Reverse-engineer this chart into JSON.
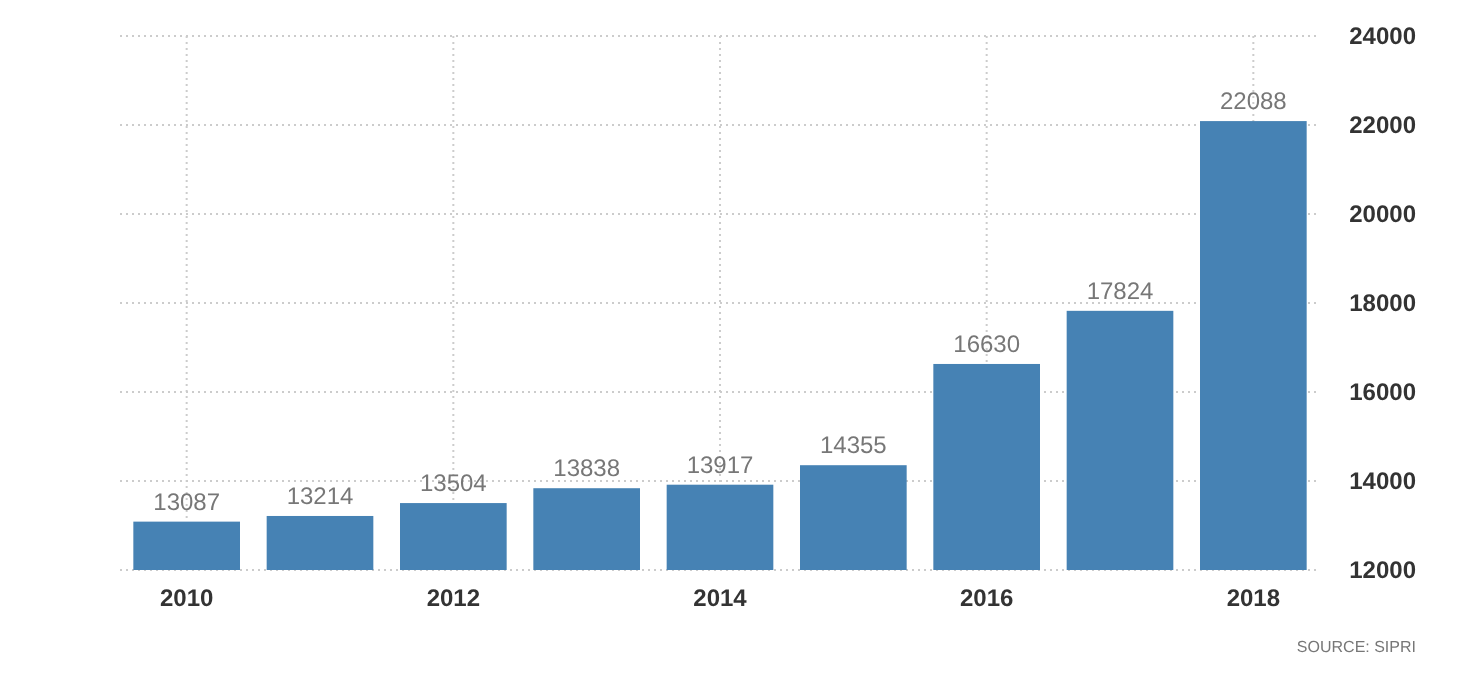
{
  "chart_data": {
    "type": "bar",
    "categories": [
      "2010",
      null,
      "2012",
      null,
      "2014",
      null,
      "2016",
      null,
      "2018"
    ],
    "values": [
      13087,
      13214,
      13504,
      13838,
      13917,
      14355,
      16630,
      17824,
      22088
    ],
    "color": "#4682b4",
    "ylim": [
      12000,
      24000
    ],
    "yticks": [
      12000,
      14000,
      16000,
      18000,
      20000,
      22000,
      24000
    ],
    "grid": true,
    "data_labels": true,
    "annotations": [
      "SOURCE: SIPRI"
    ]
  }
}
